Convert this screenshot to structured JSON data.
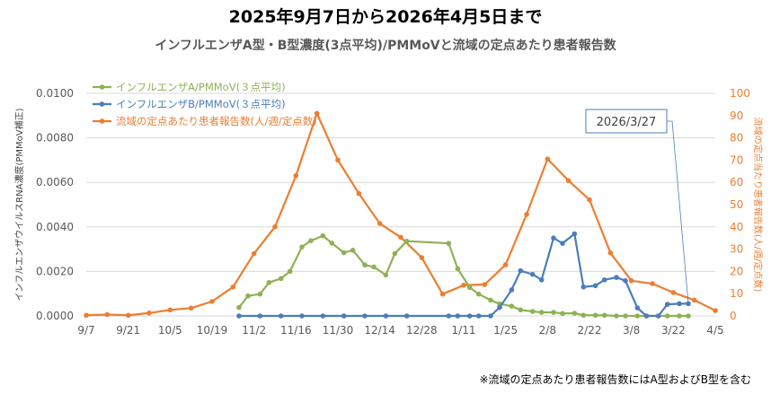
{
  "title": "2025年9月7日から2026年4月5日まで",
  "footnote": "※流域の定点あたり患者報告数にはA型およびB型を含む",
  "chart_data": {
    "type": "line",
    "title": "インフルエンザA型・B型濃度(3点平均)/PMMoVと流域の定点あたり患者報告数",
    "ylabel": "インフルエンザウイルスRNA濃度(PMMoV補正)",
    "y2label": "流域の定点当たり患者報告数(人/週/定点数)",
    "ylim": [
      0,
      0.01
    ],
    "y2lim": [
      0,
      100
    ],
    "yticks": [
      "0.0000",
      "0.0020",
      "0.0040",
      "0.0060",
      "0.0080",
      "0.0100"
    ],
    "y2ticks": [
      "0",
      "10",
      "20",
      "30",
      "40",
      "50",
      "60",
      "70",
      "80",
      "90",
      "100"
    ],
    "xticks": [
      "9/7",
      "9/21",
      "10/5",
      "10/19",
      "11/2",
      "11/16",
      "11/30",
      "12/14",
      "12/28",
      "1/11",
      "1/25",
      "2/8",
      "2/22",
      "3/8",
      "3/22",
      "4/5"
    ],
    "grid": true,
    "legend_position": "top-left",
    "annotation": {
      "text": "2026/3/27",
      "target_series": 1,
      "target_x": "3/27"
    },
    "series": [
      {
        "name": "インフルエンザA/PMMoV(３点平均)",
        "color": "#8DB255",
        "axis": "left",
        "x": [
          "10/28",
          "10/31",
          "11/4",
          "11/7",
          "11/11",
          "11/14",
          "11/18",
          "11/21",
          "11/25",
          "11/28",
          "12/2",
          "12/5",
          "12/9",
          "12/12",
          "12/16",
          "12/19",
          "12/23",
          "1/6",
          "1/9",
          "1/13",
          "1/16",
          "1/20",
          "1/23",
          "1/27",
          "1/30",
          "2/3",
          "2/6",
          "2/10",
          "2/13",
          "2/17",
          "2/20",
          "2/24",
          "2/27",
          "3/3",
          "3/6",
          "3/10",
          "3/13",
          "3/17",
          "3/20",
          "3/24",
          "3/27"
        ],
        "values": [
          0.00038,
          0.0009,
          0.00098,
          0.0015,
          0.00168,
          0.002,
          0.0031,
          0.00338,
          0.0036,
          0.00327,
          0.00284,
          0.00295,
          0.00229,
          0.0022,
          0.00184,
          0.0028,
          0.00336,
          0.00326,
          0.00212,
          0.00128,
          0.00098,
          0.00071,
          0.00054,
          0.00044,
          0.00027,
          0.0002,
          0.00016,
          0.00016,
          0.00011,
          0.00012,
          3e-05,
          3e-05,
          3e-05,
          0,
          0,
          0,
          0,
          0,
          0,
          0,
          0
        ]
      },
      {
        "name": "インフルエンザB/PMMoV(３点平均)",
        "color": "#4A7EBB",
        "axis": "left",
        "x": [
          "10/28",
          "11/4",
          "11/11",
          "11/18",
          "11/25",
          "12/2",
          "12/9",
          "12/16",
          "12/23",
          "1/6",
          "1/9",
          "1/13",
          "1/16",
          "1/20",
          "1/23",
          "1/27",
          "1/30",
          "2/3",
          "2/6",
          "2/10",
          "2/13",
          "2/17",
          "2/20",
          "2/24",
          "2/27",
          "3/3",
          "3/6",
          "3/10",
          "3/13",
          "3/17",
          "3/20",
          "3/24",
          "3/27"
        ],
        "values": [
          0,
          0,
          0,
          0,
          0,
          0,
          0,
          0,
          0,
          0,
          0,
          0,
          0,
          0,
          0.00038,
          0.00117,
          0.00203,
          0.00187,
          0.00162,
          0.0035,
          0.00326,
          0.00369,
          0.0013,
          0.00136,
          0.00162,
          0.00173,
          0.00158,
          0.00036,
          0,
          0,
          0.00052,
          0.00055,
          0.00055
        ]
      },
      {
        "name": "流域の定点あたり患者報告数(人/週/定点数)",
        "color": "#ED7D31",
        "axis": "right",
        "x": [
          "9/7",
          "9/14",
          "9/21",
          "9/28",
          "10/5",
          "10/12",
          "10/19",
          "10/26",
          "11/2",
          "11/9",
          "11/16",
          "11/23",
          "11/30",
          "12/7",
          "12/14",
          "12/21",
          "12/28",
          "1/4",
          "1/11",
          "1/18",
          "1/25",
          "2/1",
          "2/8",
          "2/15",
          "2/22",
          "3/1",
          "3/8",
          "3/15",
          "3/22",
          "3/29",
          "4/5"
        ],
        "values": [
          0.3,
          0.6,
          0.3,
          1.3,
          2.7,
          3.5,
          6.5,
          13,
          28,
          40,
          63,
          91,
          70,
          55,
          41.5,
          35.3,
          26.2,
          9.8,
          13.8,
          14.1,
          23,
          45.6,
          70.5,
          60.8,
          52.2,
          28.3,
          15.8,
          14.5,
          10.5,
          7.1,
          2.4
        ]
      }
    ]
  }
}
